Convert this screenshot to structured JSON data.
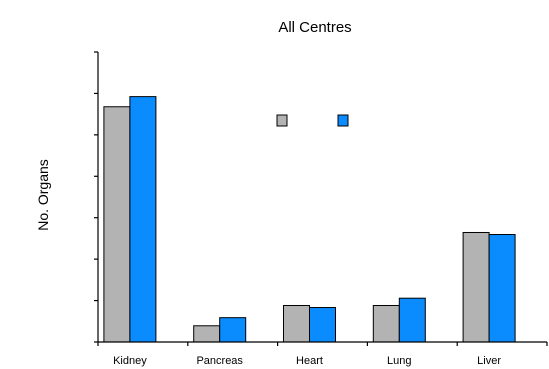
{
  "chart_data": {
    "type": "bar",
    "title": "All Centres",
    "xlabel": "",
    "ylabel": "No. Organs",
    "categories": [
      "Kidney",
      "Pancreas",
      "Heart",
      "Lung",
      "Liver"
    ],
    "series": [
      {
        "name": "",
        "color": "#b3b3b3",
        "values": [
          580,
          40,
          90,
          90,
          270
        ]
      },
      {
        "name": "",
        "color": "#0a8cff",
        "values": [
          605,
          60,
          85,
          108,
          265
        ]
      }
    ],
    "ylim": [
      0,
      715
    ],
    "grid": false,
    "legend": "top-center",
    "legend_label_visible": false,
    "y_tick_count": 7
  }
}
